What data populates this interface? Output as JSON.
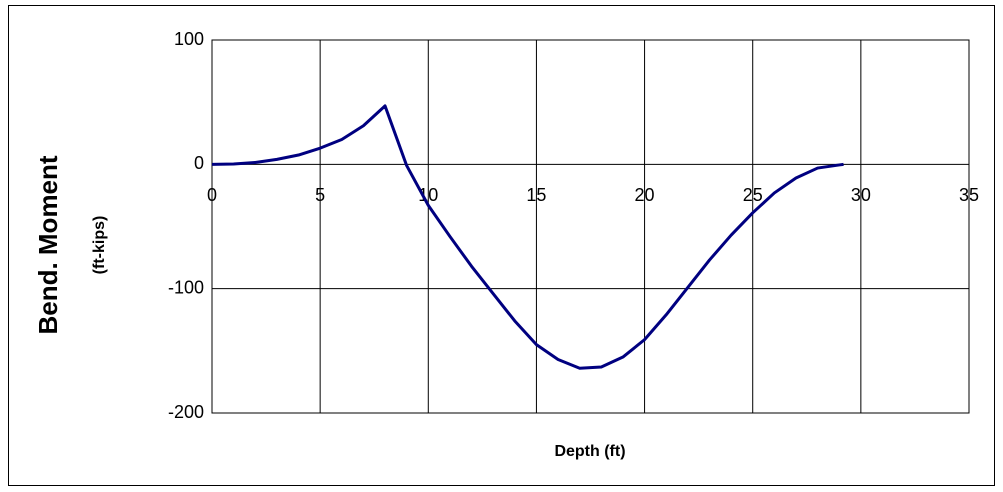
{
  "chart_data": {
    "type": "line",
    "ylabel": "Bend. Moment",
    "ylabel_units": "(ft-kips)",
    "xlabel": "Depth (ft)",
    "x": [
      0,
      1,
      2,
      3,
      4,
      5,
      6,
      7,
      8,
      9,
      10,
      11,
      12,
      13,
      14,
      15,
      16,
      17,
      18,
      19,
      20,
      21,
      22,
      23,
      24,
      25,
      26,
      27,
      28,
      29,
      29.2
    ],
    "values": [
      0,
      0.3,
      1.5,
      4,
      7.5,
      13,
      20,
      31,
      47,
      -1,
      -33,
      -58,
      -82,
      -104,
      -126,
      -145,
      -157,
      -164,
      -163,
      -155,
      -141,
      -121,
      -99,
      -77,
      -57,
      -39,
      -23,
      -11,
      -3,
      -0.5,
      0
    ],
    "color": "#000080",
    "xlim": [
      0,
      35
    ],
    "xticks": [
      0,
      5,
      10,
      15,
      20,
      25,
      30,
      35
    ],
    "ylim": [
      -200,
      100
    ],
    "yticks": [
      -200,
      -100,
      0,
      100
    ],
    "grid": true
  }
}
